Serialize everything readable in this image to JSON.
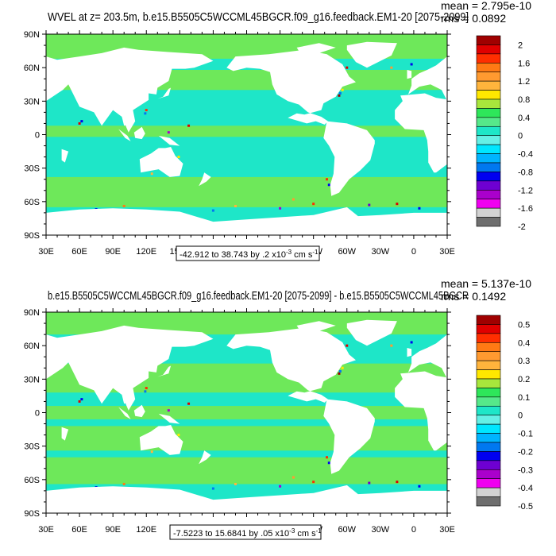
{
  "palette": {
    "ocean_main": "#1ee6c8",
    "ocean_band": "#6ee85a",
    "land": "#ffffff",
    "frame": "#000000"
  },
  "chart_data": [
    {
      "type": "heatmap",
      "title_left": "WVEL at z= 203.5m, b.e15.B5505C5WCCML45BGCR.f09_g16.feedback.EM1-20 [2075-2099]",
      "stat_mean": "mean = 2.795e-10",
      "stat_rms": "rms = 0.0892",
      "lat_ticks": [
        "90N",
        "60N",
        "30N",
        "0",
        "30S",
        "60S",
        "90S"
      ],
      "lon_ticks": [
        "30E",
        "60E",
        "90E",
        "120E",
        "150E",
        "180",
        "150W",
        "120W",
        "90W",
        "60W",
        "30W",
        "0",
        "30E"
      ],
      "xlim": [
        30,
        390
      ],
      "ylim": [
        -90,
        90
      ],
      "colorbar": {
        "labels": [
          "2",
          "1.6",
          "1.2",
          "0.8",
          "0.4",
          "0",
          "-0.4",
          "-0.8",
          "-1.2",
          "-1.6",
          "-2"
        ],
        "colors": [
          "#a00000",
          "#e00000",
          "#ff2e00",
          "#ff7a14",
          "#ff9a30",
          "#ffb43c",
          "#ffe800",
          "#a8e63c",
          "#2ee65a",
          "#56e88a",
          "#1ee6c8",
          "#64f0e6",
          "#00e6ff",
          "#00b4ff",
          "#0078f0",
          "#0000f0",
          "#6e00d2",
          "#aa00cc",
          "#f000f0",
          "#d2d2d2",
          "#6e6e6e"
        ]
      },
      "range_text": "-42.912 to 38.743 by .2 x10",
      "range_exp": "-3",
      "range_unit": " cm s",
      "range_unit_exp": "-1"
    },
    {
      "type": "heatmap",
      "title_left": "b.e15.B5505C5WCCML45BGCR.f09_g16.feedback.EM1-20 [2075-2099] - b.e15.B5505C5WCCML45BGCR",
      "stat_mean": "mean = 5.137e-10",
      "stat_rms": "rms = 0.1492",
      "lat_ticks": [
        "90N",
        "60N",
        "30N",
        "0",
        "30S",
        "60S",
        "90S"
      ],
      "lon_ticks": [
        "30E",
        "60E",
        "90E",
        "120E",
        "150E",
        "180",
        "150W",
        "120W",
        "90W",
        "60W",
        "30W",
        "0",
        "30E"
      ],
      "xlim": [
        30,
        390
      ],
      "ylim": [
        -90,
        90
      ],
      "colorbar": {
        "labels": [
          "0.5",
          "0.4",
          "0.3",
          "0.2",
          "0.1",
          "0",
          "-0.1",
          "-0.2",
          "-0.3",
          "-0.4",
          "-0.5"
        ],
        "colors": [
          "#a00000",
          "#e00000",
          "#ff2e00",
          "#ff7a14",
          "#ff9a30",
          "#ffb43c",
          "#ffe800",
          "#a8e63c",
          "#2ee65a",
          "#56e88a",
          "#1ee6c8",
          "#64f0e6",
          "#00e6ff",
          "#00b4ff",
          "#0078f0",
          "#0000f0",
          "#6e00d2",
          "#aa00cc",
          "#f000f0",
          "#d2d2d2",
          "#6e6e6e"
        ]
      },
      "range_text": "-7.5223 to 15.6841 by .05 x10",
      "range_exp": "-3",
      "range_unit": " cm s",
      "range_unit_exp": "-1"
    }
  ]
}
